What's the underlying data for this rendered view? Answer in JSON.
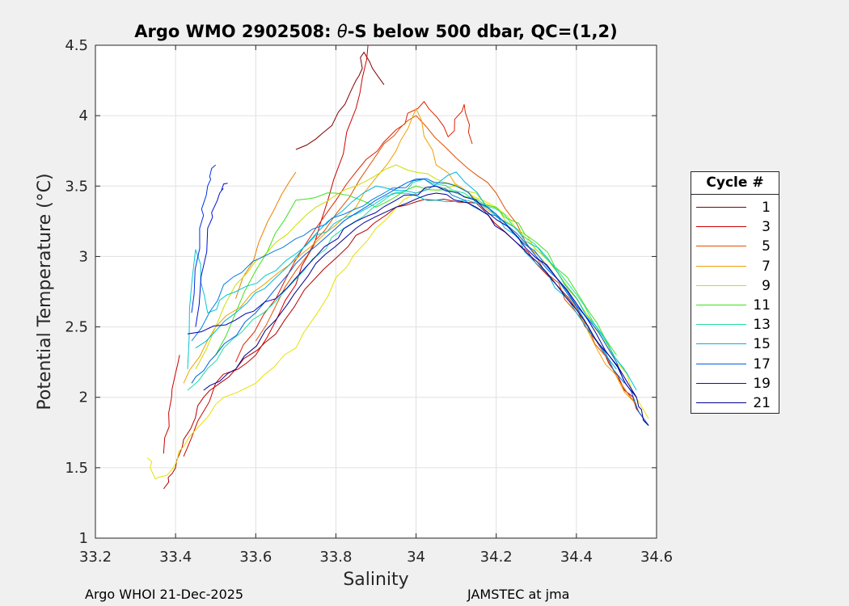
{
  "title_prefix": "Argo WMO 2902508: ",
  "title_theta": "θ",
  "title_suffix": "-S below 500 dbar,  QC=(1,2)",
  "footer_left": "Argo WHOI 21-Dec-2025",
  "footer_right": "JAMSTEC at jma",
  "chart_data": {
    "type": "line",
    "title": "Argo WMO 2902508: θ-S below 500 dbar,  QC=(1,2)",
    "xlabel": "Salinity",
    "ylabel": "Potential Temperature (°C)",
    "xlim": [
      33.2,
      34.6
    ],
    "ylim": [
      1,
      4.5
    ],
    "x_ticks": [
      "33.2",
      "33.4",
      "33.6",
      "33.8",
      "34",
      "34.2",
      "34.4",
      "34.6"
    ],
    "y_ticks": [
      "1",
      "1.5",
      "2",
      "2.5",
      "3",
      "3.5",
      "4",
      "4.5"
    ],
    "grid": true,
    "legend": {
      "title": "Cycle #",
      "placement": "right",
      "entries": [
        {
          "label": "1",
          "color": "#800000"
        },
        {
          "label": "3",
          "color": "#cc0000"
        },
        {
          "label": "5",
          "color": "#e05000"
        },
        {
          "label": "7",
          "color": "#f0a000"
        },
        {
          "label": "9",
          "color": "#c8e000"
        },
        {
          "label": "11",
          "color": "#40e020"
        },
        {
          "label": "13",
          "color": "#20e0a0"
        },
        {
          "label": "15",
          "color": "#00b4e0"
        },
        {
          "label": "17",
          "color": "#0060e0"
        },
        {
          "label": "19",
          "color": "#0010d0"
        },
        {
          "label": "21",
          "color": "#000090"
        }
      ]
    },
    "series": [
      {
        "color": "#800000",
        "points": [
          [
            33.7,
            3.76
          ],
          [
            33.79,
            3.93
          ],
          [
            33.85,
            4.25
          ],
          [
            33.87,
            4.45
          ],
          [
            33.92,
            4.22
          ]
        ]
      },
      {
        "color": "#b00000",
        "points": [
          [
            33.37,
            1.35
          ],
          [
            33.4,
            1.5
          ],
          [
            33.42,
            1.7
          ],
          [
            33.47,
            2.0
          ],
          [
            33.55,
            2.2
          ],
          [
            33.65,
            2.45
          ],
          [
            33.75,
            2.85
          ],
          [
            33.85,
            3.15
          ],
          [
            33.95,
            3.35
          ],
          [
            34.05,
            3.4
          ],
          [
            34.15,
            3.38
          ],
          [
            34.25,
            3.1
          ],
          [
            34.35,
            2.8
          ],
          [
            34.45,
            2.4
          ],
          [
            34.52,
            2.05
          ],
          [
            34.58,
            1.8
          ]
        ]
      },
      {
        "color": "#cc0000",
        "points": [
          [
            33.37,
            1.6
          ],
          [
            33.39,
            2.0
          ],
          [
            33.41,
            2.3
          ]
        ]
      },
      {
        "color": "#d00000",
        "points": [
          [
            33.42,
            1.58
          ],
          [
            33.5,
            2.1
          ],
          [
            33.6,
            2.3
          ],
          [
            33.7,
            2.8
          ],
          [
            33.78,
            3.4
          ],
          [
            33.85,
            4.05
          ],
          [
            33.88,
            4.5
          ]
        ]
      },
      {
        "color": "#e02000",
        "points": [
          [
            33.55,
            2.25
          ],
          [
            33.65,
            2.7
          ],
          [
            33.75,
            3.2
          ],
          [
            33.85,
            3.6
          ],
          [
            33.95,
            3.9
          ],
          [
            34.02,
            4.1
          ],
          [
            34.08,
            3.85
          ],
          [
            34.12,
            4.08
          ],
          [
            34.14,
            3.8
          ]
        ]
      },
      {
        "color": "#e05000",
        "points": [
          [
            33.6,
            2.4
          ],
          [
            33.7,
            2.9
          ],
          [
            33.8,
            3.3
          ],
          [
            33.92,
            3.8
          ],
          [
            34.0,
            4.0
          ],
          [
            34.1,
            3.7
          ],
          [
            34.2,
            3.45
          ],
          [
            34.3,
            3.0
          ],
          [
            34.4,
            2.6
          ],
          [
            34.5,
            2.15
          ],
          [
            34.58,
            1.8
          ]
        ]
      },
      {
        "color": "#f08000",
        "points": [
          [
            33.55,
            2.7
          ],
          [
            33.63,
            3.25
          ],
          [
            33.7,
            3.6
          ]
        ]
      },
      {
        "color": "#f0a000",
        "points": [
          [
            33.42,
            2.1
          ],
          [
            33.5,
            2.5
          ],
          [
            33.62,
            2.8
          ],
          [
            33.75,
            3.1
          ],
          [
            33.85,
            3.35
          ],
          [
            33.95,
            3.75
          ],
          [
            34.0,
            4.05
          ],
          [
            34.05,
            3.65
          ],
          [
            34.15,
            3.4
          ],
          [
            34.25,
            3.15
          ],
          [
            34.35,
            2.85
          ],
          [
            34.45,
            2.35
          ],
          [
            34.55,
            1.95
          ]
        ]
      },
      {
        "color": "#e8e000",
        "points": [
          [
            33.33,
            1.57
          ],
          [
            33.35,
            1.42
          ],
          [
            33.38,
            1.45
          ],
          [
            33.42,
            1.65
          ],
          [
            33.5,
            1.95
          ],
          [
            33.6,
            2.1
          ],
          [
            33.7,
            2.35
          ],
          [
            33.8,
            2.85
          ],
          [
            33.9,
            3.2
          ],
          [
            34.0,
            3.45
          ],
          [
            34.1,
            3.5
          ],
          [
            34.2,
            3.35
          ],
          [
            34.3,
            3.05
          ],
          [
            34.4,
            2.7
          ],
          [
            34.5,
            2.25
          ],
          [
            34.58,
            1.85
          ]
        ]
      },
      {
        "color": "#c8e000",
        "points": [
          [
            33.45,
            2.2
          ],
          [
            33.55,
            2.8
          ],
          [
            33.65,
            3.1
          ],
          [
            33.75,
            3.35
          ],
          [
            33.85,
            3.5
          ],
          [
            33.95,
            3.65
          ],
          [
            34.05,
            3.55
          ],
          [
            34.15,
            3.45
          ],
          [
            34.25,
            3.2
          ],
          [
            34.35,
            2.9
          ],
          [
            34.45,
            2.5
          ]
        ]
      },
      {
        "color": "#40e020",
        "points": [
          [
            33.5,
            2.3
          ],
          [
            33.6,
            2.9
          ],
          [
            33.7,
            3.4
          ],
          [
            33.8,
            3.45
          ],
          [
            33.9,
            3.35
          ],
          [
            34.0,
            3.5
          ],
          [
            34.1,
            3.45
          ],
          [
            34.2,
            3.35
          ],
          [
            34.3,
            3.1
          ],
          [
            34.4,
            2.75
          ],
          [
            34.5,
            2.3
          ]
        ]
      },
      {
        "color": "#20e0a0",
        "points": [
          [
            33.43,
            2.05
          ],
          [
            33.52,
            2.35
          ],
          [
            33.62,
            2.6
          ],
          [
            33.72,
            2.9
          ],
          [
            33.82,
            3.2
          ],
          [
            33.92,
            3.4
          ],
          [
            34.02,
            3.55
          ],
          [
            34.12,
            3.45
          ],
          [
            34.22,
            3.3
          ],
          [
            34.32,
            3.0
          ],
          [
            34.42,
            2.65
          ],
          [
            34.52,
            2.2
          ]
        ]
      },
      {
        "color": "#00c8d0",
        "points": [
          [
            33.43,
            2.2
          ],
          [
            33.45,
            3.05
          ],
          [
            33.48,
            2.6
          ],
          [
            33.55,
            2.75
          ],
          [
            33.65,
            2.9
          ],
          [
            33.75,
            3.15
          ],
          [
            33.85,
            3.3
          ],
          [
            33.95,
            3.45
          ],
          [
            34.05,
            3.4
          ],
          [
            34.15,
            3.38
          ],
          [
            34.25,
            3.2
          ],
          [
            34.35,
            2.9
          ],
          [
            34.45,
            2.5
          ],
          [
            34.55,
            2.05
          ]
        ]
      },
      {
        "color": "#00b4e0",
        "points": [
          [
            33.45,
            2.35
          ],
          [
            33.55,
            2.6
          ],
          [
            33.65,
            2.85
          ],
          [
            33.78,
            3.25
          ],
          [
            33.9,
            3.5
          ],
          [
            34.0,
            3.45
          ],
          [
            34.1,
            3.6
          ],
          [
            34.2,
            3.3
          ],
          [
            34.3,
            2.95
          ],
          [
            34.4,
            2.6
          ],
          [
            34.5,
            2.2
          ]
        ]
      },
      {
        "color": "#0080e0",
        "points": [
          [
            33.44,
            2.4
          ],
          [
            33.52,
            2.8
          ],
          [
            33.62,
            3.0
          ],
          [
            33.72,
            3.15
          ],
          [
            33.82,
            3.3
          ],
          [
            33.92,
            3.45
          ],
          [
            34.02,
            3.55
          ],
          [
            34.12,
            3.4
          ],
          [
            34.22,
            3.25
          ],
          [
            34.32,
            2.95
          ],
          [
            34.42,
            2.55
          ],
          [
            34.52,
            2.1
          ]
        ]
      },
      {
        "color": "#0060e0",
        "points": [
          [
            33.44,
            2.1
          ],
          [
            33.5,
            2.3
          ],
          [
            33.6,
            2.6
          ],
          [
            33.7,
            2.95
          ],
          [
            33.8,
            3.2
          ],
          [
            33.9,
            3.4
          ],
          [
            34.0,
            3.55
          ],
          [
            34.1,
            3.5
          ],
          [
            34.2,
            3.3
          ],
          [
            34.3,
            3.0
          ],
          [
            34.4,
            2.65
          ],
          [
            34.5,
            2.25
          ],
          [
            34.58,
            1.8
          ]
        ]
      },
      {
        "color": "#0030e0",
        "points": [
          [
            33.44,
            2.6
          ],
          [
            33.46,
            3.2
          ],
          [
            33.48,
            3.5
          ],
          [
            33.5,
            3.65
          ]
        ]
      },
      {
        "color": "#0010d0",
        "points": [
          [
            33.45,
            2.5
          ],
          [
            33.48,
            3.2
          ],
          [
            33.51,
            3.45
          ],
          [
            33.53,
            3.52
          ]
        ]
      },
      {
        "color": "#0000b0",
        "points": [
          [
            33.43,
            2.45
          ],
          [
            33.55,
            2.55
          ],
          [
            33.65,
            2.7
          ],
          [
            33.75,
            3.0
          ],
          [
            33.85,
            3.25
          ],
          [
            33.95,
            3.4
          ],
          [
            34.05,
            3.5
          ],
          [
            34.15,
            3.4
          ],
          [
            34.25,
            3.15
          ],
          [
            34.35,
            2.85
          ],
          [
            34.45,
            2.45
          ],
          [
            34.55,
            2.0
          ]
        ]
      },
      {
        "color": "#000090",
        "points": [
          [
            33.47,
            2.05
          ],
          [
            33.55,
            2.2
          ],
          [
            33.65,
            2.55
          ],
          [
            33.75,
            2.95
          ],
          [
            33.85,
            3.2
          ],
          [
            33.95,
            3.35
          ],
          [
            34.05,
            3.45
          ],
          [
            34.15,
            3.35
          ],
          [
            34.25,
            3.1
          ],
          [
            34.35,
            2.8
          ],
          [
            34.45,
            2.4
          ],
          [
            34.55,
            2.0
          ],
          [
            34.58,
            1.8
          ]
        ]
      }
    ]
  }
}
